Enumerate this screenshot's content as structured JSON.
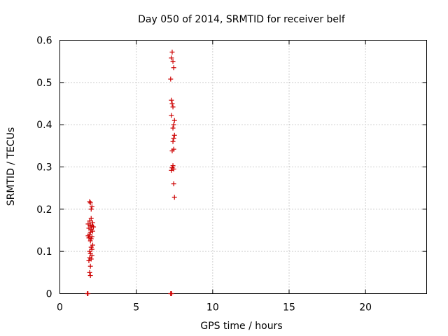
{
  "chart_data": {
    "type": "scatter",
    "title": "Day 050 of 2014, SRMTID for receiver belf",
    "xlabel": "GPS time / hours",
    "ylabel": "SRMTID / TECUs",
    "xlim": [
      0,
      24
    ],
    "ylim": [
      0,
      0.6
    ],
    "grid": true,
    "point_color": "#cc0000",
    "x_ticks": [
      0,
      5,
      10,
      15,
      20
    ],
    "x_tick_labels": [
      "0",
      "5",
      "10",
      "15",
      "20"
    ],
    "y_ticks": [
      0,
      0.1,
      0.2,
      0.3,
      0.4,
      0.5,
      0.6
    ],
    "y_tick_labels": [
      "0",
      "0.1",
      "0.2",
      "0.3",
      "0.4",
      "0.5",
      "0.6"
    ],
    "series": [
      {
        "points": [
          [
            1.95,
            0.218
          ],
          [
            2.0,
            0.215
          ],
          [
            2.1,
            0.206
          ],
          [
            2.05,
            0.2
          ],
          [
            2.05,
            0.178
          ],
          [
            1.95,
            0.172
          ],
          [
            2.15,
            0.168
          ],
          [
            1.85,
            0.165
          ],
          [
            2.0,
            0.162
          ],
          [
            2.1,
            0.16
          ],
          [
            2.2,
            0.158
          ],
          [
            1.9,
            0.155
          ],
          [
            2.05,
            0.152
          ],
          [
            2.15,
            0.148
          ],
          [
            2.0,
            0.145
          ],
          [
            1.95,
            0.14
          ],
          [
            1.85,
            0.137
          ],
          [
            2.1,
            0.135
          ],
          [
            1.9,
            0.132
          ],
          [
            2.05,
            0.13
          ],
          [
            2.0,
            0.125
          ],
          [
            2.15,
            0.115
          ],
          [
            2.05,
            0.11
          ],
          [
            2.1,
            0.105
          ],
          [
            1.95,
            0.1
          ],
          [
            2.0,
            0.095
          ],
          [
            2.1,
            0.09
          ],
          [
            1.95,
            0.085
          ],
          [
            2.05,
            0.082
          ],
          [
            1.9,
            0.078
          ],
          [
            2.0,
            0.065
          ],
          [
            1.95,
            0.05
          ],
          [
            2.0,
            0.043
          ],
          [
            7.35,
            0.572
          ],
          [
            7.3,
            0.558
          ],
          [
            7.4,
            0.55
          ],
          [
            7.45,
            0.535
          ],
          [
            7.25,
            0.508
          ],
          [
            7.3,
            0.458
          ],
          [
            7.35,
            0.45
          ],
          [
            7.4,
            0.442
          ],
          [
            7.3,
            0.422
          ],
          [
            7.5,
            0.41
          ],
          [
            7.45,
            0.4
          ],
          [
            7.4,
            0.392
          ],
          [
            7.5,
            0.375
          ],
          [
            7.45,
            0.368
          ],
          [
            7.4,
            0.36
          ],
          [
            7.45,
            0.342
          ],
          [
            7.35,
            0.338
          ],
          [
            7.4,
            0.303
          ],
          [
            7.35,
            0.298
          ],
          [
            7.45,
            0.295
          ],
          [
            7.3,
            0.292
          ],
          [
            7.45,
            0.26
          ],
          [
            7.5,
            0.228
          ],
          [
            1.8,
            0.0
          ],
          [
            1.82,
            0.0
          ],
          [
            1.84,
            0.0
          ],
          [
            7.25,
            0.0
          ],
          [
            7.28,
            0.0
          ],
          [
            7.31,
            0.0
          ]
        ]
      }
    ]
  }
}
